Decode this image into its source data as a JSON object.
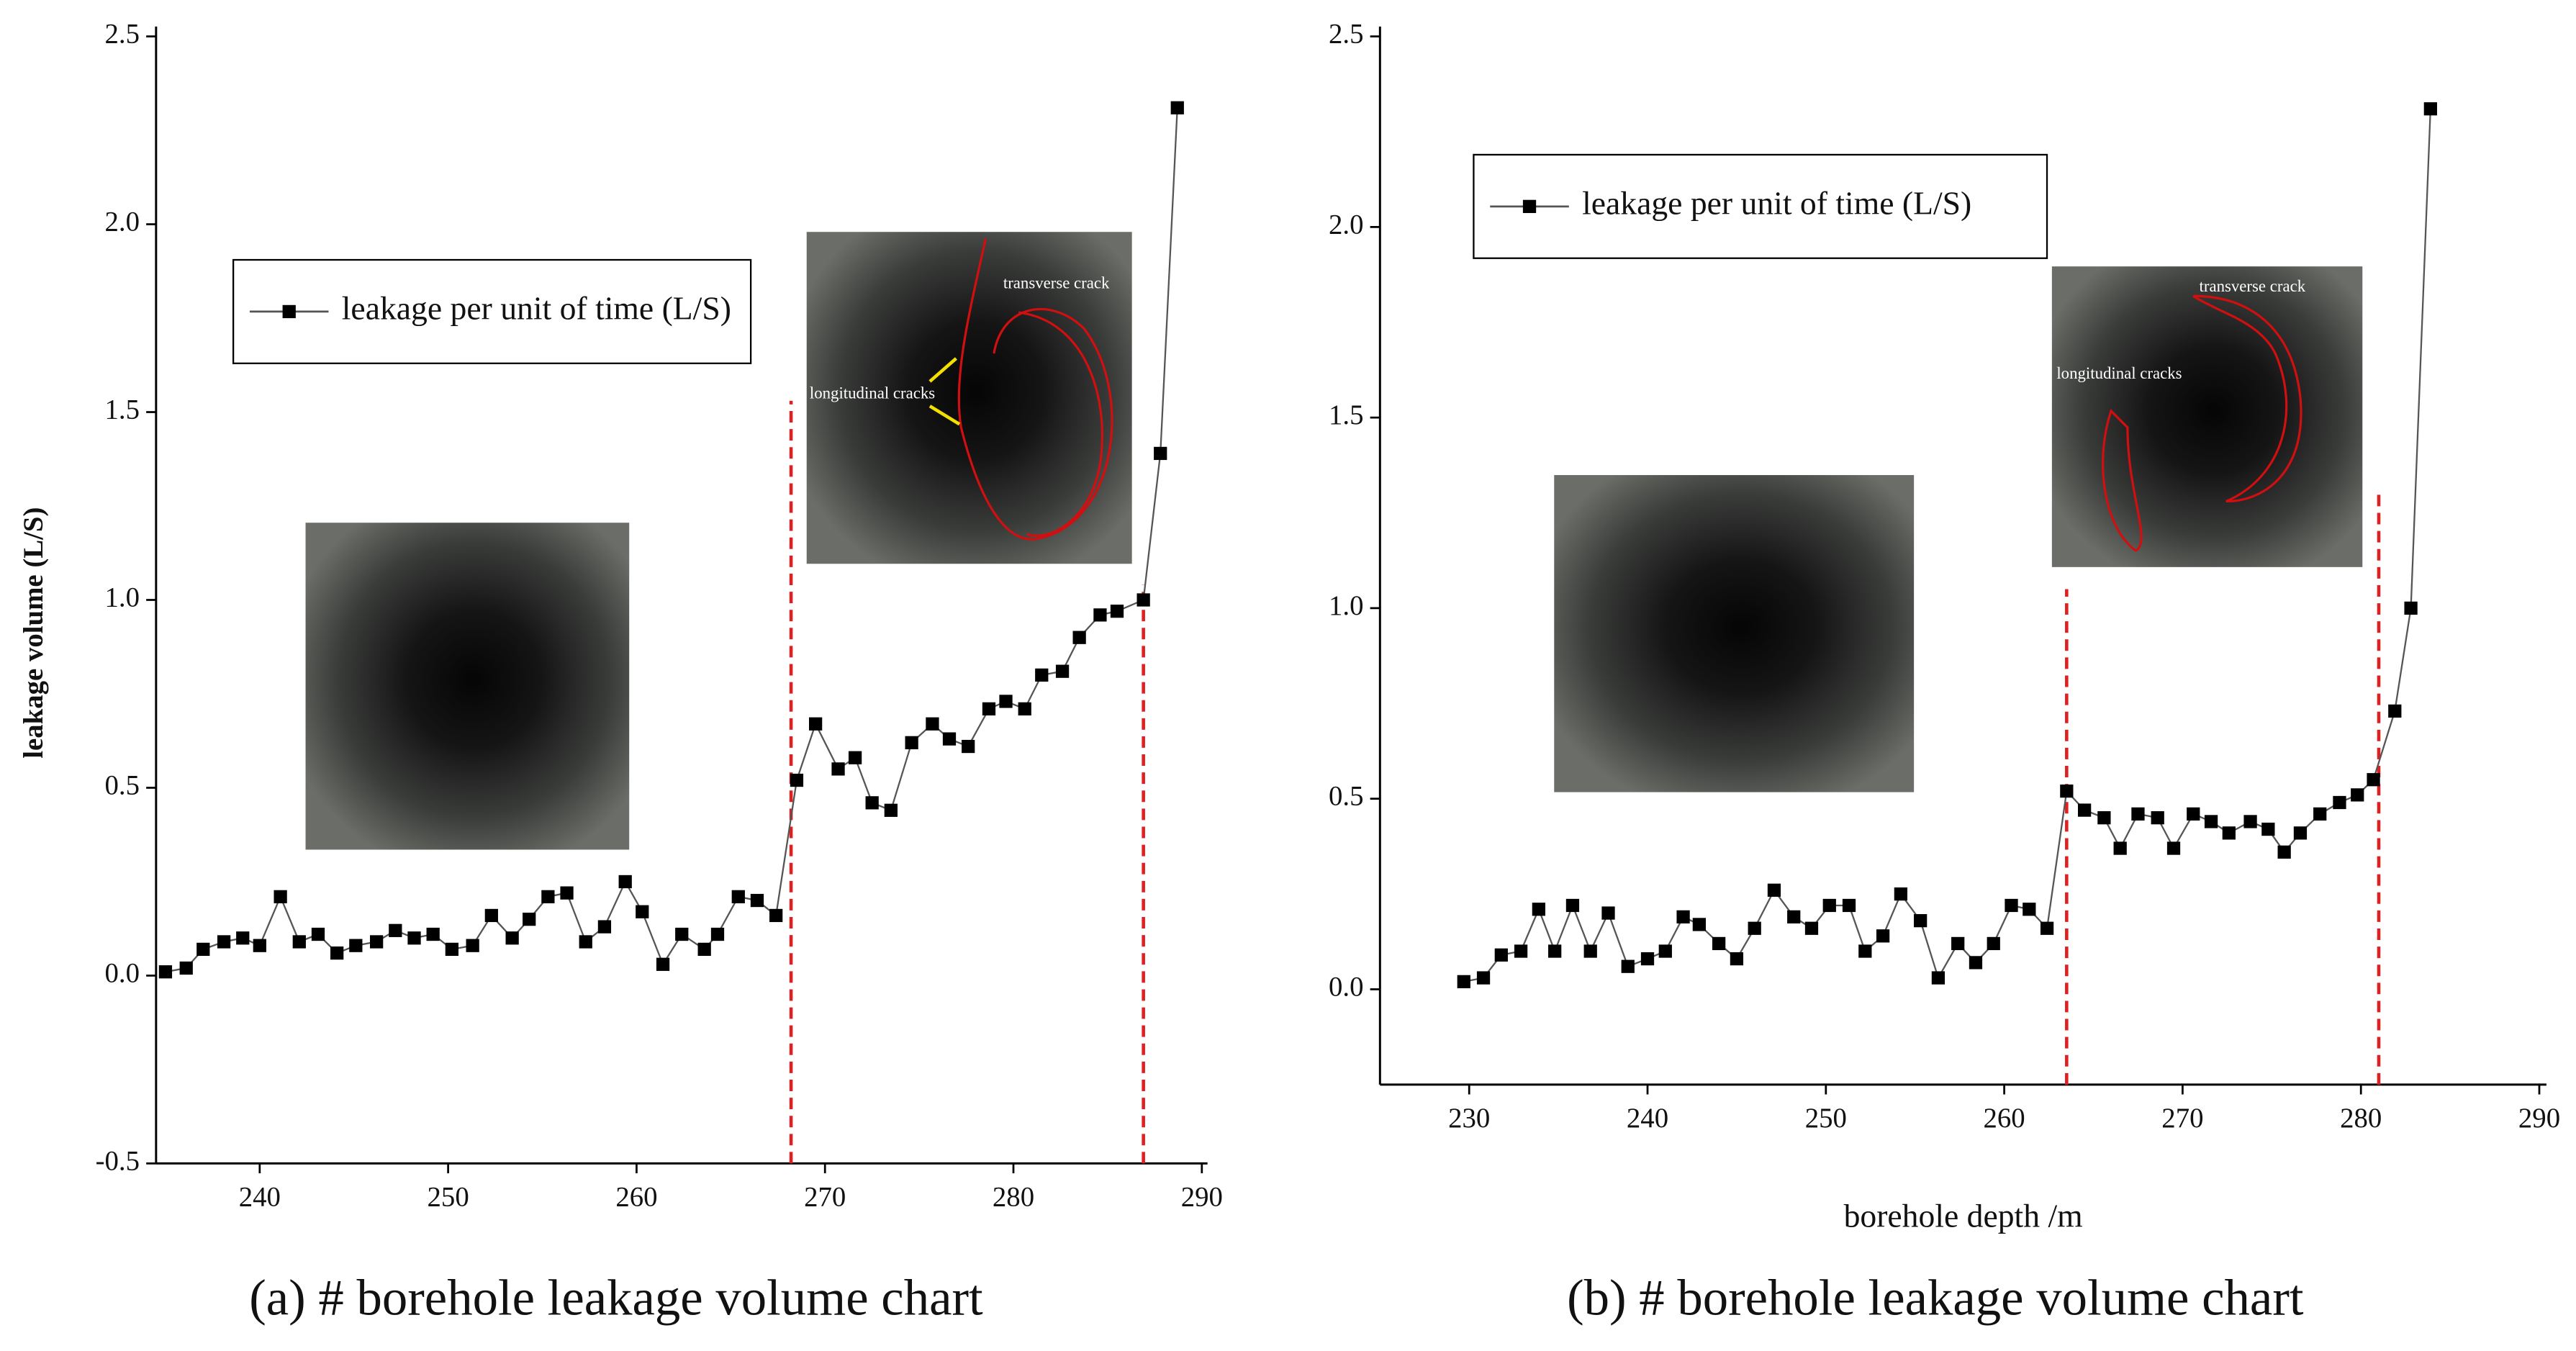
{
  "chart_data": [
    {
      "type": "line",
      "caption": "(a) # borehole leakage volume chart",
      "y_label": "leakage volume (L/S)",
      "xlim": [
        234.5,
        290.3
      ],
      "ylim": [
        -0.5,
        2.5
      ],
      "xticks": [
        240,
        250,
        260,
        270,
        280,
        290
      ],
      "yticks": [
        -0.5,
        {
          "value": 0,
          "label": "0.0"
        },
        0.5,
        {
          "value": 1,
          "label": "1.0"
        },
        1.5,
        {
          "value": 2,
          "label": "2.0"
        },
        2.5
      ],
      "x": [
        235.0,
        236.1,
        237.0,
        238.1,
        239.1,
        240.0,
        241.1,
        242.1,
        243.1,
        244.1,
        245.1,
        246.2,
        247.2,
        248.2,
        249.2,
        250.2,
        251.3,
        252.3,
        253.4,
        254.3,
        255.3,
        256.3,
        257.3,
        258.3,
        259.4,
        260.3,
        261.4,
        262.4,
        263.6,
        264.3,
        265.4,
        266.4,
        267.4,
        268.5,
        269.5,
        270.7,
        271.6,
        272.5,
        273.5,
        274.6,
        275.7,
        276.6,
        277.6,
        278.7,
        279.6,
        280.6,
        281.5,
        282.6,
        283.5,
        284.6,
        285.5,
        286.9,
        287.8,
        288.7
      ],
      "series": [
        {
          "name": "leakage per unit of time (L/S)",
          "color": "#000000",
          "values": [
            0.01,
            0.02,
            0.07,
            0.09,
            0.1,
            0.08,
            0.21,
            0.09,
            0.11,
            0.06,
            0.08,
            0.09,
            0.12,
            0.1,
            0.11,
            0.07,
            0.08,
            0.16,
            0.1,
            0.15,
            0.21,
            0.22,
            0.09,
            0.13,
            0.25,
            0.17,
            0.03,
            0.11,
            0.07,
            0.11,
            0.21,
            0.2,
            0.16,
            0.52,
            0.67,
            0.55,
            0.58,
            0.46,
            0.44,
            0.62,
            0.67,
            0.63,
            0.61,
            0.71,
            0.73,
            0.71,
            0.8,
            0.81,
            0.9,
            0.96,
            0.97,
            1.0,
            1.39,
            2.31
          ]
        }
      ],
      "vlines": [
        {
          "x": 268.2,
          "top": 1.53,
          "color": "#e02020"
        },
        {
          "x": 286.9,
          "top": 1.04,
          "color": "#e02020"
        }
      ],
      "annotations": [
        "transverse crack",
        "longitudinal cracks"
      ]
    },
    {
      "type": "line",
      "caption": "(b) # borehole leakage volume chart",
      "x_label": "borehole depth /m",
      "xlim": [
        225,
        290.4
      ],
      "ylim": [
        -0.25,
        2.5
      ],
      "xticks": [
        230,
        240,
        250,
        260,
        270,
        280,
        290
      ],
      "yticks": [
        {
          "value": 0,
          "label": "0.0"
        },
        0.5,
        {
          "value": 1,
          "label": "1.0"
        },
        1.5,
        {
          "value": 2,
          "label": "2.0"
        },
        2.5
      ],
      "x": [
        229.7,
        230.8,
        231.8,
        232.9,
        233.9,
        234.8,
        235.8,
        236.8,
        237.8,
        238.9,
        240.0,
        241.0,
        242.0,
        242.9,
        244.0,
        245.0,
        246.0,
        247.1,
        248.2,
        249.2,
        250.2,
        251.3,
        252.2,
        253.2,
        254.2,
        255.3,
        256.3,
        257.4,
        258.4,
        259.4,
        260.4,
        261.4,
        262.4,
        263.5,
        264.5,
        265.6,
        266.5,
        267.5,
        268.6,
        269.5,
        270.6,
        271.6,
        272.6,
        273.8,
        274.8,
        275.7,
        276.6,
        277.7,
        278.8,
        279.8,
        280.7,
        281.9,
        282.8,
        283.9
      ],
      "series": [
        {
          "name": "leakage per unit of time (L/S)",
          "color": "#000000",
          "values": [
            0.02,
            0.03,
            0.09,
            0.1,
            0.21,
            0.1,
            0.22,
            0.1,
            0.2,
            0.06,
            0.08,
            0.1,
            0.19,
            0.17,
            0.12,
            0.08,
            0.16,
            0.26,
            0.19,
            0.16,
            0.22,
            0.22,
            0.1,
            0.14,
            0.25,
            0.18,
            0.03,
            0.12,
            0.07,
            0.12,
            0.22,
            0.21,
            0.16,
            0.52,
            0.47,
            0.45,
            0.37,
            0.46,
            0.45,
            0.37,
            0.46,
            0.44,
            0.41,
            0.44,
            0.42,
            0.36,
            0.41,
            0.46,
            0.49,
            0.51,
            0.55,
            0.73,
            1.0,
            2.31
          ]
        }
      ],
      "vlines": [
        {
          "x": 263.5,
          "top": 1.05,
          "color": "#e02020"
        },
        {
          "x": 281.0,
          "top": 1.31,
          "color": "#e02020"
        }
      ],
      "annotations": [
        "transverse crack",
        "longitudinal cracks"
      ]
    }
  ]
}
